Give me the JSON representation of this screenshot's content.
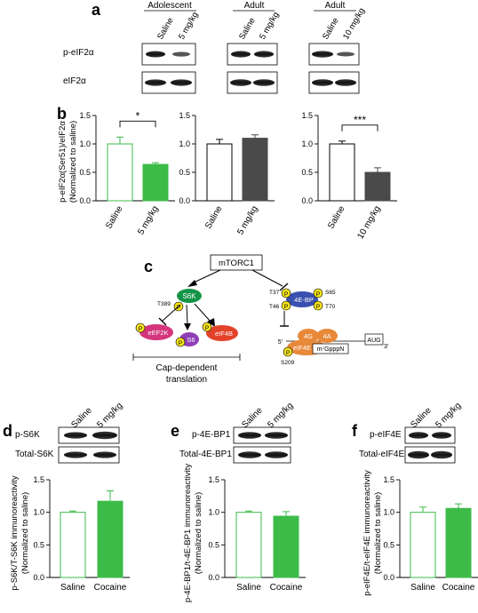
{
  "panel_a": {
    "label": "a",
    "groups": [
      "Adolescent",
      "Adult",
      "Adult"
    ],
    "lanes": [
      [
        "Saline",
        "5 mg/kg"
      ],
      [
        "Saline",
        "5 mg/kg"
      ],
      [
        "Saline",
        "10 mg/kg"
      ]
    ],
    "rows": [
      "p-eIF2α",
      "eIF2α"
    ]
  },
  "panel_b": {
    "label": "b",
    "ylabel": "p-eIF2α(Ser51)/eIF2α",
    "ylabel2": "(Normalized to saline)"
  },
  "panel_c": {
    "label": "c",
    "mtorc1": "mTORC1",
    "s6k": "S6K",
    "ebp": "4E-BP",
    "eef2k": "eEF2K",
    "s6": "S6",
    "eif4b": "eIF4B",
    "eif4e": "eIF4E",
    "g4": "4G",
    "a4": "4A",
    "cap": "m⁷GpppN",
    "aug": "AUG",
    "p": "P",
    "t389": "T389",
    "t37": "T37",
    "t46": "T46",
    "s65": "S65",
    "t70": "T70",
    "s209": "S209",
    "five": "5'",
    "three": "3'",
    "cap_dep1": "Cap-dependent",
    "cap_dep2": "translation"
  },
  "panel_d": {
    "label": "d",
    "lanes": [
      "Saline",
      "5 mg/kg"
    ],
    "rows": [
      "p-S6K",
      "Total-S6K"
    ],
    "ylabel": "p-S6K/T-S6K immunoreactivity",
    "ylabel2": "(Normalized to saline)"
  },
  "panel_e": {
    "label": "e",
    "lanes": [
      "Saline",
      "5 mg/kg"
    ],
    "rows": [
      "p-4E-BP1",
      "Total-4E-BP1"
    ],
    "ylabel": "p-4E-BP1/t-4E-BP1 immunoreactivity",
    "ylabel2": "(Normalized to saline)"
  },
  "panel_f": {
    "label": "f",
    "lanes": [
      "Saline",
      "5 mg/kg"
    ],
    "rows": [
      "p-eIF4E",
      "Total-eIF4E"
    ],
    "ylabel": "p-eIF4E/t-eIF4E immunoreactivity",
    "ylabel2": "(Normalized to saline)"
  },
  "colors": {
    "green": "#3dbb48",
    "grey": "#4a4a4a",
    "pink": "#d4357c",
    "blue": "#3a50b0",
    "orange": "#e8893a",
    "yellow": "#f3e21b",
    "purple": "#8e3fb5",
    "darkgreen": "#159447",
    "red": "#e4432b"
  },
  "chart_data": [
    {
      "id": "b1",
      "type": "bar",
      "categories": [
        "Saline",
        "5 mg/kg"
      ],
      "values": [
        1.0,
        0.64
      ],
      "errors": [
        0.12,
        0.03
      ],
      "fill": [
        "none",
        "green"
      ],
      "ylim": [
        0,
        1.5
      ],
      "yticks": [
        "0.0",
        "0.5",
        "1.0",
        "1.5"
      ],
      "sig": "*"
    },
    {
      "id": "b2",
      "type": "bar",
      "categories": [
        "Saline",
        "5 mg/kg"
      ],
      "values": [
        1.0,
        1.1
      ],
      "errors": [
        0.08,
        0.06
      ],
      "fill": [
        "none",
        "grey"
      ],
      "ylim": [
        0,
        1.5
      ],
      "yticks": [
        "0.0",
        "0.5",
        "1.0",
        "1.5"
      ]
    },
    {
      "id": "b3",
      "type": "bar",
      "categories": [
        "Saline",
        "10 mg/kg"
      ],
      "values": [
        1.0,
        0.5
      ],
      "errors": [
        0.05,
        0.08
      ],
      "fill": [
        "none",
        "grey"
      ],
      "ylim": [
        0,
        1.5
      ],
      "yticks": [
        "0.0",
        "0.5",
        "1.0",
        "1.5"
      ],
      "sig": "***"
    },
    {
      "id": "d",
      "type": "bar",
      "categories": [
        "Saline",
        "Cocaine"
      ],
      "values": [
        1.0,
        1.17
      ],
      "errors": [
        0.02,
        0.16
      ],
      "fill": [
        "none",
        "green"
      ],
      "ylim": [
        0,
        1.5
      ],
      "yticks": [
        "0.0",
        "0.5",
        "1.0",
        "1.5"
      ]
    },
    {
      "id": "e",
      "type": "bar",
      "categories": [
        "Saline",
        "Cocaine"
      ],
      "values": [
        1.0,
        0.94
      ],
      "errors": [
        0.02,
        0.07
      ],
      "fill": [
        "none",
        "green"
      ],
      "ylim": [
        0,
        1.5
      ],
      "yticks": [
        "0.0",
        "0.5",
        "1.0",
        "1.5"
      ]
    },
    {
      "id": "f",
      "type": "bar",
      "categories": [
        "Saline",
        "Cocaine"
      ],
      "values": [
        1.0,
        1.06
      ],
      "errors": [
        0.08,
        0.07
      ],
      "fill": [
        "none",
        "green"
      ],
      "ylim": [
        0,
        1.5
      ],
      "yticks": [
        "0.0",
        "0.5",
        "1.0",
        "1.5"
      ]
    }
  ]
}
